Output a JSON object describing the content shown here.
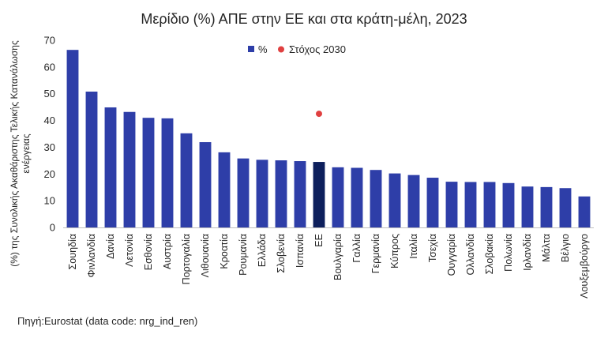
{
  "chart_data": {
    "type": "bar",
    "title": "Μερίδιο (%) ΑΠΕ στην ΕΕ και στα κράτη-μέλη, 2023",
    "ylabel_lines": [
      "(%) της Συνολικής Ακαθάριστης Τελικής Κατανάλωσης",
      "ενέργειας"
    ],
    "xlabel": "",
    "ylim": [
      0,
      70
    ],
    "yticks": [
      0,
      10,
      20,
      30,
      40,
      50,
      60,
      70
    ],
    "grid": false,
    "legend_position": "top",
    "categories": [
      "Σουηδία",
      "Φινλανδία",
      "Δανία",
      "Λετονία",
      "Εσθονία",
      "Αυστρία",
      "Πορτογαλία",
      "Λιθουανία",
      "Κροατία",
      "Ρουμανία",
      "Ελλάδα",
      "Σλοβενία",
      "Ισπανία",
      "ΕΕ",
      "Βουλγαρία",
      "Γαλλία",
      "Γερμανία",
      "Κύπρος",
      "Ιταλία",
      "Τσεχία",
      "Ουγγαρία",
      "Ολλανδία",
      "Σλοβακία",
      "Πολωνία",
      "Ιρλανδία",
      "Μάλτα",
      "Βέλγιο",
      "Λουξεμβούργο"
    ],
    "series": [
      {
        "name": "%",
        "color": "#2E3EA8",
        "highlight_category": "ΕΕ",
        "highlight_color": "#0D1F5C",
        "values": [
          66.4,
          50.8,
          44.9,
          43.2,
          41.0,
          40.8,
          35.2,
          31.9,
          28.1,
          25.8,
          25.3,
          25.1,
          24.8,
          24.5,
          22.5,
          22.3,
          21.5,
          20.2,
          19.6,
          18.6,
          17.1,
          17.0,
          17.0,
          16.6,
          15.3,
          15.1,
          14.7,
          11.6
        ]
      },
      {
        "name": "Στόχος 2030",
        "type": "scatter",
        "color": "#E04040",
        "category": "ΕΕ",
        "value": 42.5
      }
    ]
  },
  "source_text": "Πηγή:Eurostat  (data code: nrg_ind_ren)"
}
